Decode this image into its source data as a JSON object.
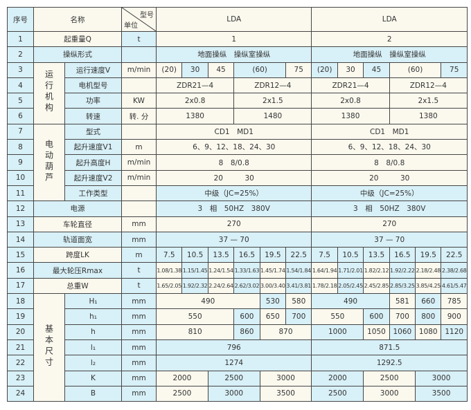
{
  "header": {
    "seq": "序号",
    "name": "名称",
    "model": "型号",
    "unit": "单位",
    "models": [
      "LDA",
      "LDA"
    ]
  },
  "groups": [
    "运行机构",
    "电动葫芦",
    "基本尺寸"
  ],
  "rows": [
    {
      "no": "1",
      "name": "起重量Q",
      "unit": "t",
      "values": [
        "1",
        "2"
      ]
    },
    {
      "no": "2",
      "name": "操纵形式",
      "unit": "",
      "values": [
        "地面操纵　操纵室操纵",
        "地面操纵　操纵室操纵"
      ]
    },
    {
      "no": "3",
      "name": "运行速度V",
      "unit": "m/min",
      "values": [
        "(20)",
        "30",
        "45",
        "(60)",
        "75",
        "(20)",
        "30",
        "45",
        "(60)",
        "75"
      ]
    },
    {
      "no": "4",
      "name": "电机型号",
      "unit": "",
      "values": [
        "ZDR21—4",
        "ZDR12—4",
        "ZDR21—4",
        "ZDR12—4"
      ]
    },
    {
      "no": "5",
      "name": "功率",
      "unit": "KW",
      "values": [
        "2x0.8",
        "2x1.5",
        "2x0.8",
        "2x1.5"
      ]
    },
    {
      "no": "6",
      "name": "转速",
      "unit": "转. 分",
      "values": [
        "1380",
        "1480",
        "1380",
        "1380"
      ]
    },
    {
      "no": "7",
      "name": "型式",
      "unit": "",
      "values": [
        "CD1　MD1",
        "CD1　MD1"
      ]
    },
    {
      "no": "8",
      "name": "起升速度V1",
      "unit": "m",
      "values": [
        "6、9、12、18、24、30",
        "6、9、12、18、24、30"
      ]
    },
    {
      "no": "9",
      "name": "起升高度H",
      "unit": "m/min",
      "values": [
        "8　8/0.8",
        "8　8/0.8"
      ]
    },
    {
      "no": "10",
      "name": "起升速度V2",
      "unit": "m/min",
      "values": [
        "20　　　30",
        "20　　　30"
      ]
    },
    {
      "no": "11",
      "name": "工作类型",
      "unit": "",
      "values": [
        "中级（JC=25%）",
        "中级（JC=25%）"
      ]
    },
    {
      "no": "12",
      "name": "电源",
      "unit": "",
      "values": [
        "3　相　50HZ　380V",
        "3　相　50HZ　380V"
      ]
    },
    {
      "no": "13",
      "name": "车轮直径",
      "unit": "mm",
      "values": [
        "270",
        "270"
      ]
    },
    {
      "no": "14",
      "name": "轨道面宽",
      "unit": "mm",
      "values": [
        "37 — 70",
        "37 — 70"
      ]
    },
    {
      "no": "15",
      "name": "跨度LK",
      "unit": "m",
      "values": [
        "7.5",
        "10.5",
        "13.5",
        "16.5",
        "19.5",
        "22.5",
        "7.5",
        "10.5",
        "13.5",
        "16.5",
        "19.5",
        "22.5"
      ]
    },
    {
      "no": "16",
      "name": "最大轮压Rmax",
      "unit": "t",
      "values": [
        "1.08/1.38",
        "1.15/1.45",
        "1.24/1.54",
        "1.33/1.63",
        "1.45/1.74",
        "1.54/1.84",
        "1.64/1.94",
        "1.71/2.01",
        "1.82/2.12",
        "1.92/2.22",
        "2.18/2.48",
        "2.38/2.68"
      ]
    },
    {
      "no": "17",
      "name": "总重W",
      "unit": "t",
      "values": [
        "1.65/2.05",
        "1.92/2.32",
        "2.24/2.64",
        "2.62/3.02",
        "3.00/3.40",
        "3.41/3.81",
        "1.78/2.18",
        "2.05/2.45",
        "2.45/2.85",
        "2.85/3.25",
        "3.85/4.25",
        "4.61/5.47"
      ]
    },
    {
      "no": "18",
      "name": "H₁",
      "unit": "mm",
      "values": [
        "490",
        "530",
        "580",
        "490",
        "581",
        "660",
        "785"
      ]
    },
    {
      "no": "19",
      "name": "h₁",
      "unit": "mm",
      "values": [
        "550",
        "600",
        "650",
        "700",
        "550",
        "600",
        "700",
        "800",
        "900"
      ]
    },
    {
      "no": "20",
      "name": "h",
      "unit": "mm",
      "values": [
        "810",
        "860",
        "870",
        "1000",
        "1050",
        "1060",
        "1080",
        "1120"
      ]
    },
    {
      "no": "21",
      "name": "l₁",
      "unit": "mm",
      "values": [
        "796",
        "871.5"
      ]
    },
    {
      "no": "22",
      "name": "l₂",
      "unit": "mm",
      "values": [
        "1274",
        "1292.5"
      ]
    },
    {
      "no": "23",
      "name": "K",
      "unit": "mm",
      "values": [
        "2000",
        "2500",
        "3000",
        "2000",
        "2500",
        "3000"
      ]
    },
    {
      "no": "24",
      "name": "B",
      "unit": "mm",
      "values": [
        "2500",
        "3000",
        "3500",
        "2500",
        "3000",
        "3500"
      ]
    }
  ]
}
